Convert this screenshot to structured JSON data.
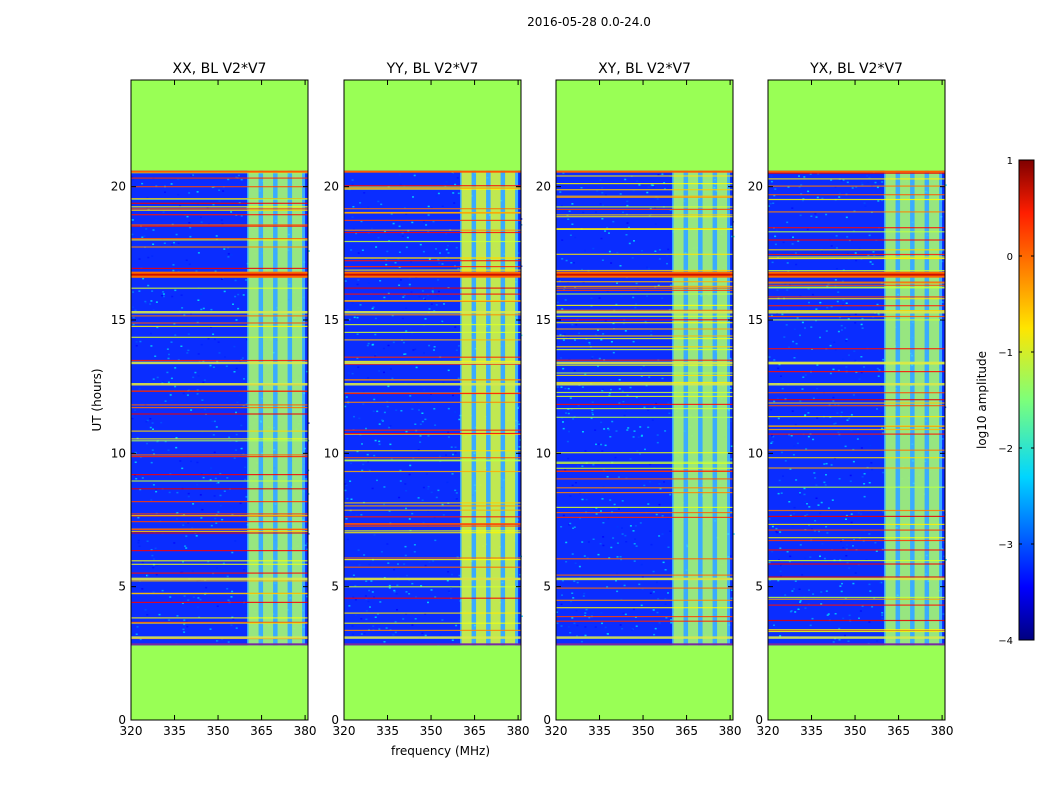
{
  "suptitle": "2016-05-28 0.0-24.0",
  "colors": {
    "background": "#ffffff",
    "empty": "#99ff55",
    "frame": "#000000"
  },
  "chart_data": [
    {
      "type": "heatmap",
      "title": "XX, BL V2*V7",
      "xlabel": "",
      "ylabel": "UT (hours)",
      "xlim": [
        320,
        381
      ],
      "ylim": [
        0,
        24
      ],
      "xticks": [
        320,
        335,
        350,
        365,
        380
      ],
      "yticks": [
        0,
        5,
        10,
        15,
        20
      ],
      "data_coverage_hours": [
        2.8,
        20.6
      ],
      "rfi_band_mhz": [
        360,
        380
      ]
    },
    {
      "type": "heatmap",
      "title": "YY, BL V2*V7",
      "xlabel": "frequency (MHz)",
      "ylabel": "",
      "xlim": [
        320,
        381
      ],
      "ylim": [
        0,
        24
      ],
      "xticks": [
        320,
        335,
        350,
        365,
        380
      ],
      "yticks": [
        0,
        5,
        10,
        15,
        20
      ],
      "data_coverage_hours": [
        2.8,
        20.6
      ],
      "rfi_band_mhz": [
        360,
        380
      ]
    },
    {
      "type": "heatmap",
      "title": "XY, BL V2*V7",
      "xlabel": "",
      "ylabel": "",
      "xlim": [
        320,
        381
      ],
      "ylim": [
        0,
        24
      ],
      "xticks": [
        320,
        335,
        350,
        365,
        380
      ],
      "yticks": [
        0,
        5,
        10,
        15,
        20
      ],
      "data_coverage_hours": [
        2.8,
        20.6
      ],
      "rfi_band_mhz": [
        360,
        380
      ]
    },
    {
      "type": "heatmap",
      "title": "YX, BL V2*V7",
      "xlabel": "",
      "ylabel": "",
      "xlim": [
        320,
        381
      ],
      "ylim": [
        0,
        24
      ],
      "xticks": [
        320,
        335,
        350,
        365,
        380
      ],
      "yticks": [
        0,
        5,
        10,
        15,
        20
      ],
      "data_coverage_hours": [
        2.8,
        20.6
      ],
      "rfi_band_mhz": [
        360,
        380
      ]
    }
  ],
  "colorbar": {
    "label": "log10 amplitude",
    "vmin": -4,
    "vmax": 1,
    "ticks": [
      1,
      0,
      -1,
      -2,
      -3,
      -4
    ],
    "tick_labels": [
      "1",
      "0",
      "−1",
      "−2",
      "−3",
      "−4"
    ]
  }
}
